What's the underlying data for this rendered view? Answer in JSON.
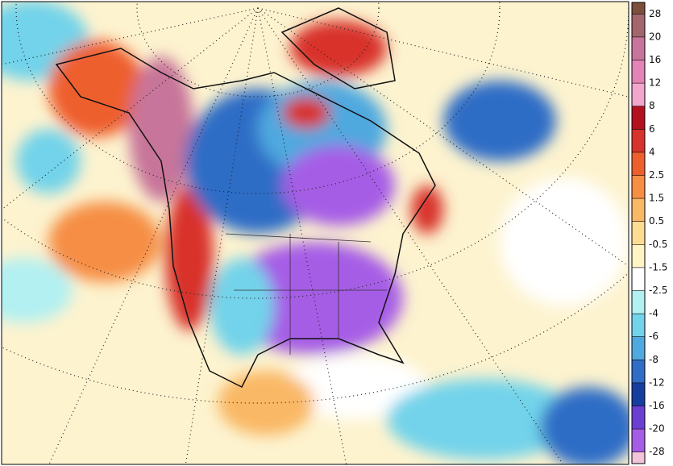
{
  "legend": {
    "labels": [
      28,
      20,
      16,
      12,
      8,
      6,
      4,
      2.5,
      1.5,
      0.5,
      -0.5,
      -1.5,
      -2.5,
      -4,
      -6,
      -8,
      -12,
      -16,
      -20,
      -28
    ],
    "colors": [
      "#7b4f3c",
      "#a4666c",
      "#c7759a",
      "#e384b6",
      "#f2a6cc",
      "#b3111f",
      "#d8322c",
      "#ee5f2e",
      "#f68e44",
      "#f9b865",
      "#fbdc92",
      "#fff4c4",
      "#ffffff",
      "#b2f0f2",
      "#72d3ea",
      "#4fa9df",
      "#2f6dc6",
      "#153e9e",
      "#6a3fd1",
      "#a65de6",
      "#f3c3d8"
    ]
  }
}
